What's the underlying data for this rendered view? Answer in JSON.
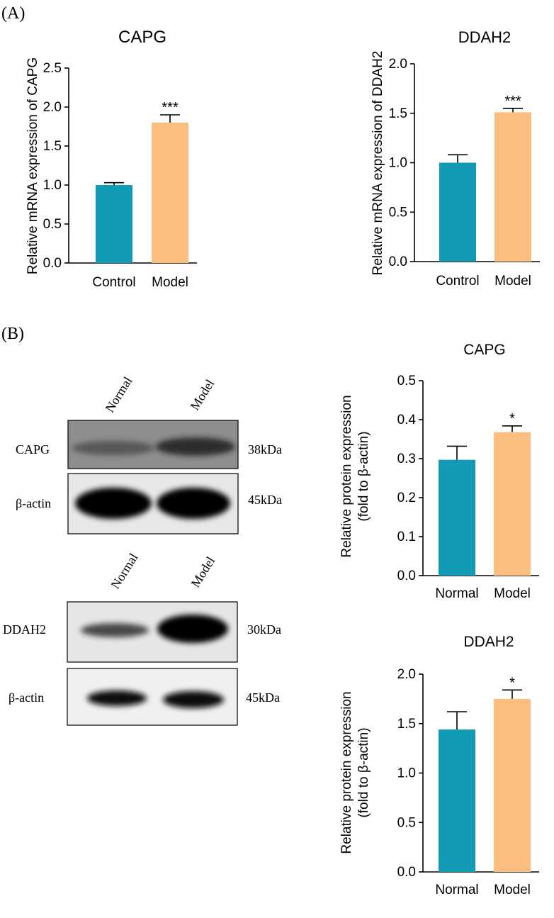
{
  "panels": {
    "a_label": "(A)",
    "b_label": "(B)"
  },
  "colors": {
    "teal": "#119bb4",
    "orange": "#fbbe7e"
  },
  "chart_data": [
    {
      "type": "bar",
      "title": "CAPG",
      "ylabel": "Relative mRNA expression of CAPG",
      "categories": [
        "Control",
        "Model"
      ],
      "values": [
        1.0,
        1.8
      ],
      "errors": [
        0.03,
        0.1
      ],
      "significance": [
        "",
        "***"
      ],
      "ylim": [
        0,
        2.5
      ],
      "yticks": [
        "0.0",
        "0.5",
        "1.0",
        "1.5",
        "2.0",
        "2.5"
      ],
      "colors": [
        "#119bb4",
        "#fbbe7e"
      ]
    },
    {
      "type": "bar",
      "title": "DDAH2",
      "ylabel": "Relative mRNA expression of DDAH2",
      "categories": [
        "Control",
        "Model"
      ],
      "values": [
        1.0,
        1.51
      ],
      "errors": [
        0.08,
        0.04
      ],
      "significance": [
        "",
        "***"
      ],
      "ylim": [
        0,
        2.0
      ],
      "yticks": [
        "0.0",
        "0.5",
        "1.0",
        "1.5",
        "2.0"
      ],
      "colors": [
        "#119bb4",
        "#fbbe7e"
      ]
    },
    {
      "type": "bar",
      "title": "CAPG",
      "ylabel": "Relative protein expression",
      "ylabel2": "(fold to β-actin)",
      "categories": [
        "Normal",
        "Model"
      ],
      "values": [
        0.297,
        0.368
      ],
      "errors": [
        0.035,
        0.016
      ],
      "significance": [
        "",
        "*"
      ],
      "ylim": [
        0,
        0.5
      ],
      "yticks": [
        "0.0",
        "0.1",
        "0.2",
        "0.3",
        "0.4",
        "0.5"
      ],
      "colors": [
        "#119bb4",
        "#fbbe7e"
      ]
    },
    {
      "type": "bar",
      "title": "DDAH2",
      "ylabel": "Relative protein expression",
      "ylabel2": "(fold to β-actin)",
      "categories": [
        "Normal",
        "Model"
      ],
      "values": [
        1.44,
        1.75
      ],
      "errors": [
        0.18,
        0.09
      ],
      "significance": [
        "",
        "*"
      ],
      "ylim": [
        0,
        2.0
      ],
      "yticks": [
        "0.0",
        "0.5",
        "1.0",
        "1.5",
        "2.0"
      ],
      "colors": [
        "#119bb4",
        "#fbbe7e"
      ]
    }
  ],
  "blots": [
    {
      "lanes": [
        "Normal",
        "Model"
      ],
      "rows": [
        {
          "label": "CAPG",
          "size": "38kDa",
          "intensity": [
            0.55,
            0.85
          ]
        },
        {
          "label": "β-actin",
          "size": "45kDa",
          "intensity": [
            1.0,
            1.0
          ]
        }
      ]
    },
    {
      "lanes": [
        "Normal",
        "Model"
      ],
      "rows": [
        {
          "label": "DDAH2",
          "size": "30kDa",
          "intensity": [
            0.6,
            1.0
          ]
        },
        {
          "label": "β-actin",
          "size": "45kDa",
          "intensity": [
            0.95,
            0.95
          ]
        }
      ]
    }
  ]
}
